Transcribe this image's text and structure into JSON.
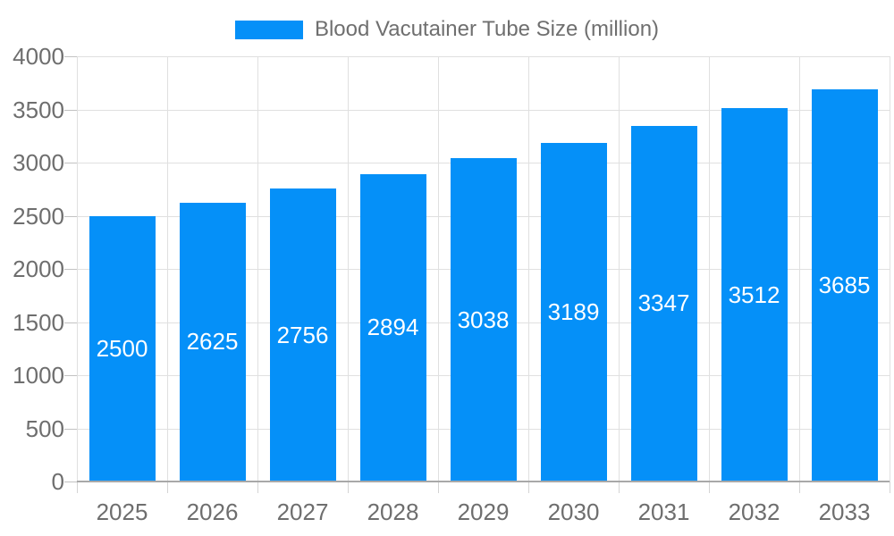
{
  "chart_data": {
    "type": "bar",
    "title": "",
    "legend_label": "Blood Vacutainer Tube Size (million)",
    "legend_position": "top-center",
    "categories": [
      "2025",
      "2026",
      "2027",
      "2028",
      "2029",
      "2030",
      "2031",
      "2032",
      "2033"
    ],
    "values": [
      2500,
      2625,
      2756,
      2894,
      3038,
      3189,
      3347,
      3512,
      3685
    ],
    "xlabel": "",
    "ylabel": "",
    "ylim": [
      0,
      4000
    ],
    "ytick_step": 500,
    "yticks": [
      0,
      500,
      1000,
      1500,
      2000,
      2500,
      3000,
      3500,
      4000
    ],
    "grid": true,
    "bar_labels_inside": true,
    "colors": {
      "bar": "#0590f8",
      "legend_text": "#6f6f6f",
      "axis_text": "#6e6e6e",
      "bar_label": "#ffffff",
      "gridline": "#e0e0e0",
      "axis_line": "#a8a8a8",
      "y_tick": "#c2c2c2",
      "x_tick": "#d4d4d4",
      "background": "#ffffff"
    }
  }
}
